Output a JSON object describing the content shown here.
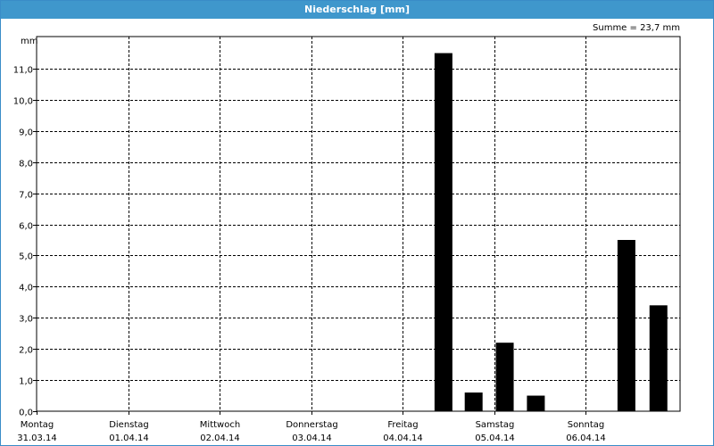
{
  "window": {
    "title": "Niederschlag [mm]"
  },
  "summary": {
    "text": "Summe = 23,7 mm"
  },
  "chart_data": {
    "type": "bar",
    "title": "Niederschlag [mm]",
    "ylabel": "mm",
    "xlabel": "",
    "ylim": [
      0,
      12
    ],
    "y_ticks": [
      "0,0",
      "1,0",
      "2,0",
      "3,0",
      "4,0",
      "5,0",
      "6,0",
      "7,0",
      "8,0",
      "9,0",
      "10,0",
      "11,0"
    ],
    "x_start": "31.03.14",
    "x_days": [
      {
        "weekday": "Montag",
        "date": "31.03.14"
      },
      {
        "weekday": "Dienstag",
        "date": "01.04.14"
      },
      {
        "weekday": "Mittwoch",
        "date": "02.04.14"
      },
      {
        "weekday": "Donnerstag",
        "date": "03.04.14"
      },
      {
        "weekday": "Freitag",
        "date": "04.04.14"
      },
      {
        "weekday": "Samstag",
        "date": "05.04.14"
      },
      {
        "weekday": "Sonntag",
        "date": "06.04.14"
      }
    ],
    "bars": [
      {
        "day": 4.35,
        "value": 11.5
      },
      {
        "day": 4.68,
        "value": 0.6
      },
      {
        "day": 5.02,
        "value": 2.2
      },
      {
        "day": 5.36,
        "value": 0.5
      },
      {
        "day": 6.35,
        "value": 5.5
      },
      {
        "day": 6.7,
        "value": 3.4
      }
    ],
    "grid": true,
    "colors": {
      "bar": "#000000",
      "grid": "#000000",
      "title_bar": "#3f97cc"
    }
  }
}
